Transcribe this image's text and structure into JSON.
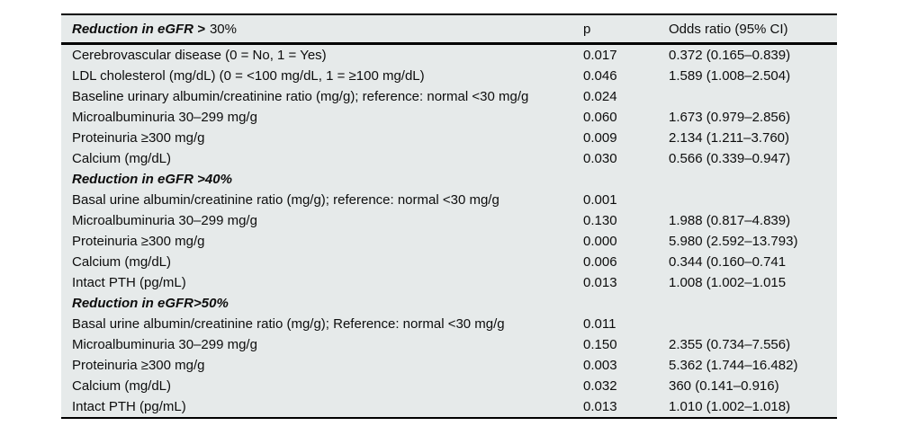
{
  "table": {
    "background_color": "#e6eaea",
    "rule_color": "#000000",
    "header": {
      "title_bold_italic": "Reduction in eGFR >",
      "title_regular": "30%",
      "p_label": "p",
      "odds_label": "Odds ratio (95% CI)"
    },
    "rows": [
      {
        "type": "data",
        "label": "Cerebrovascular disease (0 = No, 1 = Yes)",
        "p": "0.017",
        "or": "0.372 (0.165–0.839)"
      },
      {
        "type": "data",
        "label": "LDL cholesterol (mg/dL) (0 = <100 mg/dL, 1 = ≥100 mg/dL)",
        "p": "0.046",
        "or": "1.589 (1.008–2.504)"
      },
      {
        "type": "data",
        "label": "Baseline urinary albumin/creatinine ratio (mg/g); reference: normal <30 mg/g",
        "p": "0.024",
        "or": ""
      },
      {
        "type": "data",
        "label": "Microalbuminuria 30–299 mg/g",
        "p": "0.060",
        "or": "1.673 (0.979–2.856)"
      },
      {
        "type": "data",
        "label": "Proteinuria ≥300 mg/g",
        "p": "0.009",
        "or": "2.134 (1.211–3.760)"
      },
      {
        "type": "data",
        "label": "Calcium (mg/dL)",
        "p": "0.030",
        "or": "0.566 (0.339–0.947)"
      },
      {
        "type": "section",
        "label": "Reduction in eGFR >40%",
        "p": "",
        "or": ""
      },
      {
        "type": "data",
        "label": "Basal urine albumin/creatinine ratio (mg/g); reference: normal <30 mg/g",
        "p": "0.001",
        "or": ""
      },
      {
        "type": "data",
        "label": "Microalbuminuria 30–299 mg/g",
        "p": "0.130",
        "or": "1.988 (0.817–4.839)"
      },
      {
        "type": "data",
        "label": "Proteinuria ≥300 mg/g",
        "p": "0.000",
        "or": "5.980 (2.592–13.793)"
      },
      {
        "type": "data",
        "label": "Calcium (mg/dL)",
        "p": "0.006",
        "or": "0.344 (0.160–0.741"
      },
      {
        "type": "data",
        "label": "Intact PTH (pg/mL)",
        "p": "0.013",
        "or": "1.008 (1.002–1.015"
      },
      {
        "type": "section",
        "label": "Reduction in eGFR>50%",
        "p": "",
        "or": ""
      },
      {
        "type": "data",
        "label": "Basal urine albumin/creatinine ratio (mg/g); Reference: normal <30 mg/g",
        "p": "0.011",
        "or": ""
      },
      {
        "type": "data",
        "label": "Microalbuminuria 30–299 mg/g",
        "p": "0.150",
        "or": "2.355 (0.734–7.556)"
      },
      {
        "type": "data",
        "label": "Proteinuria ≥300 mg/g",
        "p": "0.003",
        "or": "5.362 (1.744–16.482)"
      },
      {
        "type": "data",
        "label": "Calcium (mg/dL)",
        "p": "0.032",
        "or": "360 (0.141–0.916)"
      },
      {
        "type": "data",
        "label": "Intact PTH (pg/mL)",
        "p": "0.013",
        "or": "1.010 (1.002–1.018)"
      }
    ]
  }
}
